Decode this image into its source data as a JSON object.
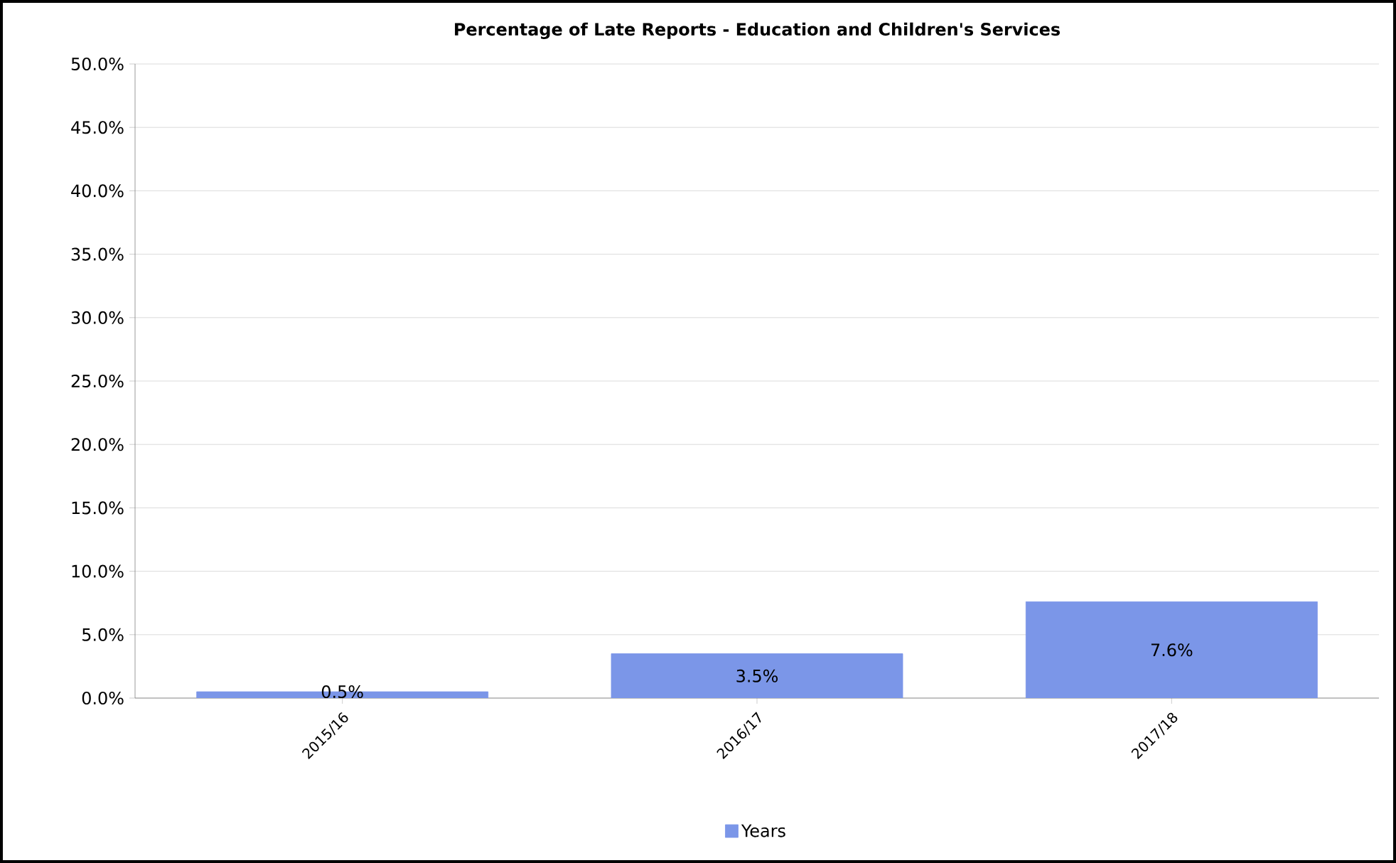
{
  "chart_data": {
    "type": "bar",
    "title": "Percentage of Late Reports - Education and Children's Services",
    "categories": [
      "2015/16",
      "2016/17",
      "2017/18"
    ],
    "series": [
      {
        "name": "Years",
        "color": "#7b96e8",
        "values": [
          0.5,
          3.5,
          7.6
        ],
        "value_labels": [
          "0.5%",
          "3.5%",
          "7.6%"
        ]
      }
    ],
    "ylim": [
      0,
      50
    ],
    "yticks": [
      {
        "value": 0,
        "label": "0.0%"
      },
      {
        "value": 5,
        "label": "5.0%"
      },
      {
        "value": 10,
        "label": "10.0%"
      },
      {
        "value": 15,
        "label": "15.0%"
      },
      {
        "value": 20,
        "label": "20.0%"
      },
      {
        "value": 25,
        "label": "25.0%"
      },
      {
        "value": 30,
        "label": "30.0%"
      },
      {
        "value": 35,
        "label": "35.0%"
      },
      {
        "value": 40,
        "label": "40.0%"
      },
      {
        "value": 45,
        "label": "45.0%"
      },
      {
        "value": 50,
        "label": "50.0%"
      }
    ],
    "grid": "y",
    "legend": "bottom"
  }
}
